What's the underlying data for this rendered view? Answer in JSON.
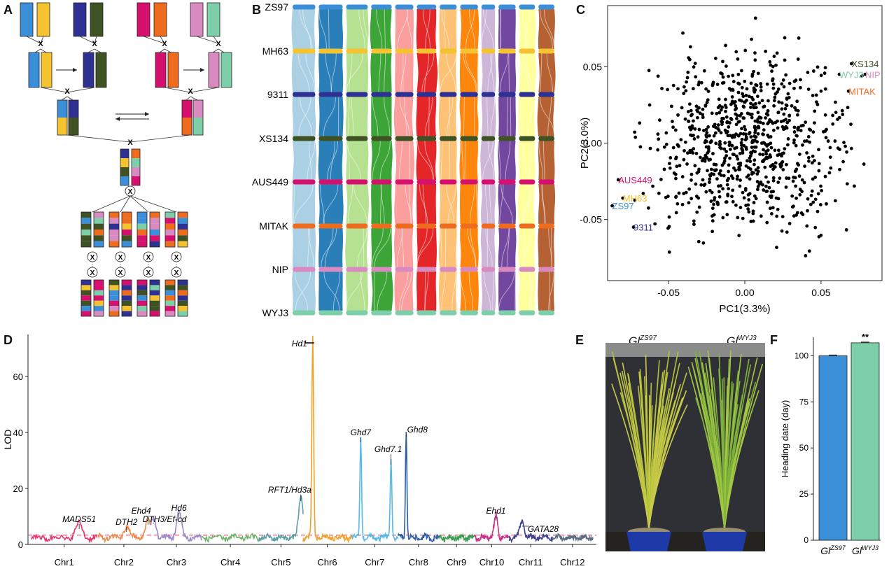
{
  "panel_labels": {
    "a": "A",
    "b": "B",
    "c": "C",
    "d": "D",
    "e": "E",
    "f": "F"
  },
  "panelA": {
    "cross": "X",
    "colors": {
      "ZS97": "#3b8fd9",
      "MH63": "#f5c230",
      "9311": "#2e3192",
      "XS134": "#3f5223",
      "AUS449": "#d6106e",
      "MITAK": "#ef6c1f",
      "NIP": "#d98ac0",
      "WYJ3": "#7ccfa8"
    }
  },
  "panelB": {
    "genomes": [
      "ZS97",
      "MH63",
      "9311",
      "XS134",
      "AUS449",
      "MITAK",
      "NIP",
      "WYJ3"
    ],
    "genome_colors": [
      "#3b8fd9",
      "#f5c230",
      "#2e3192",
      "#3f5223",
      "#d6106e",
      "#ef6c1f",
      "#d98ac0",
      "#7ccfa8"
    ],
    "chr_colors": [
      "#a6cee3",
      "#1f78b4",
      "#b2df8a",
      "#33a02c",
      "#fb9a99",
      "#e31a1c",
      "#fdbf6f",
      "#ff7f00",
      "#cab2d6",
      "#6a3d9a",
      "#ffff99",
      "#b15928"
    ]
  },
  "panelC": {
    "chart_data": {
      "type": "scatter",
      "xlabel": "PC1(3.3%)",
      "ylabel": "PC2(3.0%)",
      "xlim": [
        -0.09,
        0.09
      ],
      "ylim": [
        -0.09,
        0.09
      ],
      "xticks": [
        "-0.05",
        "0.00",
        "0.05"
      ],
      "yticks": [
        "0.05",
        "0.00",
        "-0.05"
      ],
      "labels": [
        {
          "text": "XS134",
          "x": 0.07,
          "y": 0.052,
          "color": "#3f5223"
        },
        {
          "text": "WYJ3",
          "x": 0.062,
          "y": 0.045,
          "color": "#7ccfa8"
        },
        {
          "text": "NIP",
          "x": 0.079,
          "y": 0.045,
          "color": "#d98ac0"
        },
        {
          "text": "MITAK",
          "x": 0.068,
          "y": 0.034,
          "color": "#ef6c1f"
        },
        {
          "text": "AUS449",
          "x": -0.083,
          "y": -0.024,
          "color": "#d6106e"
        },
        {
          "text": "MH63",
          "x": -0.08,
          "y": -0.036,
          "color": "#f5c230"
        },
        {
          "text": "ZS97",
          "x": -0.087,
          "y": -0.041,
          "color": "#3b8fd9"
        },
        {
          "text": "9311",
          "x": -0.073,
          "y": -0.055,
          "color": "#2e3192"
        }
      ]
    }
  },
  "panelD": {
    "chart_data": {
      "type": "line",
      "ylabel": "LOD",
      "ylim": [
        0,
        75
      ],
      "yticks": [
        "0",
        "20",
        "40",
        "60"
      ],
      "threshold": 3.3,
      "chromosomes": [
        "Chr1",
        "Chr2",
        "Chr3",
        "Chr4",
        "Chr5",
        "Chr6",
        "Chr7",
        "Chr8",
        "Chr9",
        "Chr10",
        "Chr11",
        "Chr12"
      ],
      "chr_colors": [
        "#e8336a",
        "#f08a4b",
        "#9b87c9",
        "#6fb36b",
        "#5e9fa7",
        "#f1a12a",
        "#56b9e6",
        "#2c5fa8",
        "#3a9d52",
        "#c8338c",
        "#3a3f8f",
        "#5b6e84"
      ],
      "peaks": [
        {
          "gene": "MADS51",
          "chr": 0,
          "pos": 0.73,
          "lod": 5
        },
        {
          "gene": "DTH2",
          "chr": 1,
          "pos": 0.55,
          "lod": 4
        },
        {
          "gene": "Ehd4",
          "chr": 1,
          "pos": 0.95,
          "lod": 6.5
        },
        {
          "gene": "DTH3/Ef-cd",
          "chr": 2,
          "pos": 0.05,
          "lod": 7
        },
        {
          "gene": "Hd6",
          "chr": 2,
          "pos": 0.55,
          "lod": 9
        },
        {
          "gene": "RFT1/Hd3a",
          "chr": 4,
          "pos": 0.95,
          "lod": 15
        },
        {
          "gene": "Hd1",
          "chr": 5,
          "pos": 0.2,
          "lod": 72
        },
        {
          "gene": "Ghd7",
          "chr": 6,
          "pos": 0.2,
          "lod": 36
        },
        {
          "gene": "Ghd7.1",
          "chr": 6,
          "pos": 0.85,
          "lod": 28
        },
        {
          "gene": "Ghd8",
          "chr": 7,
          "pos": 0.2,
          "lod": 38
        },
        {
          "gene": "Ehd1",
          "chr": 9,
          "pos": 0.62,
          "lod": 8
        },
        {
          "gene": "GATA28",
          "chr": 10,
          "pos": 0.3,
          "lod": 6
        }
      ]
    }
  },
  "panelE": {
    "left_label_base": "Gl",
    "left_label_sup": "ZS97",
    "right_label_base": "Gl",
    "right_label_sup": "WYJ3"
  },
  "panelF": {
    "chart_data": {
      "type": "bar",
      "categories": [
        "GlZS97",
        "GlWYJ3"
      ],
      "cat_base": [
        "Gl",
        "Gl"
      ],
      "cat_sup": [
        "ZS97",
        "WYJ3"
      ],
      "values": [
        100,
        107
      ],
      "colors": [
        "#3b8fd9",
        "#7ccfa8"
      ],
      "ylabel": "Heading date (day)",
      "ylim": [
        0,
        110
      ],
      "yticks": [
        "0",
        "25",
        "50",
        "75",
        "100"
      ],
      "significance": "**"
    }
  }
}
